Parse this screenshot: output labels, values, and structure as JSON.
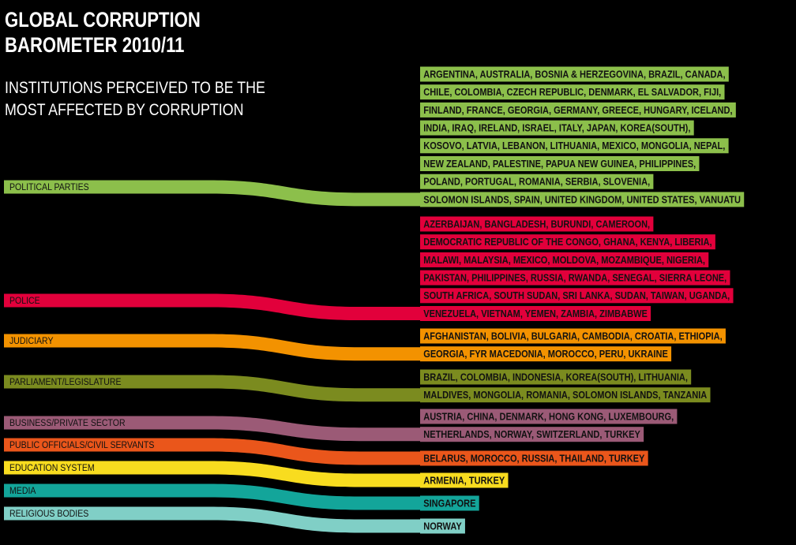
{
  "title": [
    "GLOBAL CORRUPTION",
    "BAROMETER 2010/11"
  ],
  "subtitle": [
    "INSTITUTIONS PERCEIVED TO BE THE",
    "MOST AFFECTED BY CORRUPTION"
  ],
  "institutions": [
    {
      "label": "POLITICAL PARTIES",
      "color": "#8cbf4b",
      "countries": [
        "ARGENTINA, AUSTRALIA, BOSNIA & HERZEGOVINA, BRAZIL, CANADA,",
        "CHILE, COLOMBIA, CZECH REPUBLIC, DENMARK, EL SALVADOR, FIJI,",
        "FINLAND, FRANCE, GEORGIA, GERMANY, GREECE, HUNGARY, ICELAND,",
        "INDIA, IRAQ, IRELAND, ISRAEL, ITALY, JAPAN, KOREA(SOUTH),",
        "KOSOVO, LATVIA, LEBANON, LITHUANIA, MEXICO, MONGOLIA, NEPAL,",
        "NEW ZEALAND, PALESTINE, PAPUA NEW GUINEA, PHILIPPINES,",
        "POLAND, PORTUGAL, ROMANIA, SERBIA, SLOVENIA,",
        "SOLOMON ISLANDS, SPAIN, UNITED KINGDOM, UNITED STATES, VANUATU"
      ]
    },
    {
      "label": "POLICE",
      "color": "#e2003b",
      "countries": [
        "AZERBAIJAN, BANGLADESH, BURUNDI, CAMEROON,",
        "DEMOCRATIC REPUBLIC OF THE CONGO, GHANA, KENYA, LIBERIA,",
        "MALAWI, MALAYSIA, MEXICO, MOLDOVA, MOZAMBIQUE, NIGERIA,",
        "PAKISTAN, PHILIPPINES, RUSSIA, RWANDA, SENEGAL, SIERRA LEONE,",
        "SOUTH AFRICA, SOUTH SUDAN, SRI LANKA, SUDAN, TAIWAN, UGANDA,",
        "VENEZUELA, VIETNAM, YEMEN, ZAMBIA, ZIMBABWE"
      ]
    },
    {
      "label": "JUDICIARY",
      "color": "#f39200",
      "countries": [
        "AFGHANISTAN, BOLIVIA, BULGARIA, CAMBODIA, CROATIA, ETHIOPIA,",
        "GEORGIA, FYR MACEDONIA, MOROCCO, PERU, UKRAINE"
      ]
    },
    {
      "label": "PARLIAMENT/LEGISLATURE",
      "color": "#7b8b1f",
      "countries": [
        "BRAZIL, COLOMBIA, INDONESIA, KOREA(SOUTH), LITHUANIA,",
        "MALDIVES, MONGOLIA, ROMANIA, SOLOMON ISLANDS, TANZANIA"
      ]
    },
    {
      "label": "BUSINESS/PRIVATE SECTOR",
      "color": "#9b5a76",
      "countries": [
        "AUSTRIA, CHINA, DENMARK, HONG KONG, LUXEMBOURG,",
        "NETHERLANDS, NORWAY, SWITZERLAND, TURKEY"
      ]
    },
    {
      "label": "PUBLIC OFFICIALS/CIVIL SERVANTS",
      "color": "#ea561b",
      "countries": [
        "BELARUS, MOROCCO, RUSSIA, THAILAND, TURKEY"
      ]
    },
    {
      "label": "EDUCATION SYSTEM",
      "color": "#f8dc1f",
      "countries": [
        "ARMENIA, TURKEY"
      ]
    },
    {
      "label": "MEDIA",
      "color": "#13a59a",
      "countries": [
        "SINGAPORE"
      ]
    },
    {
      "label": "RELIGIOUS BODIES",
      "color": "#80cfc6",
      "countries": [
        "NORWAY"
      ]
    }
  ]
}
